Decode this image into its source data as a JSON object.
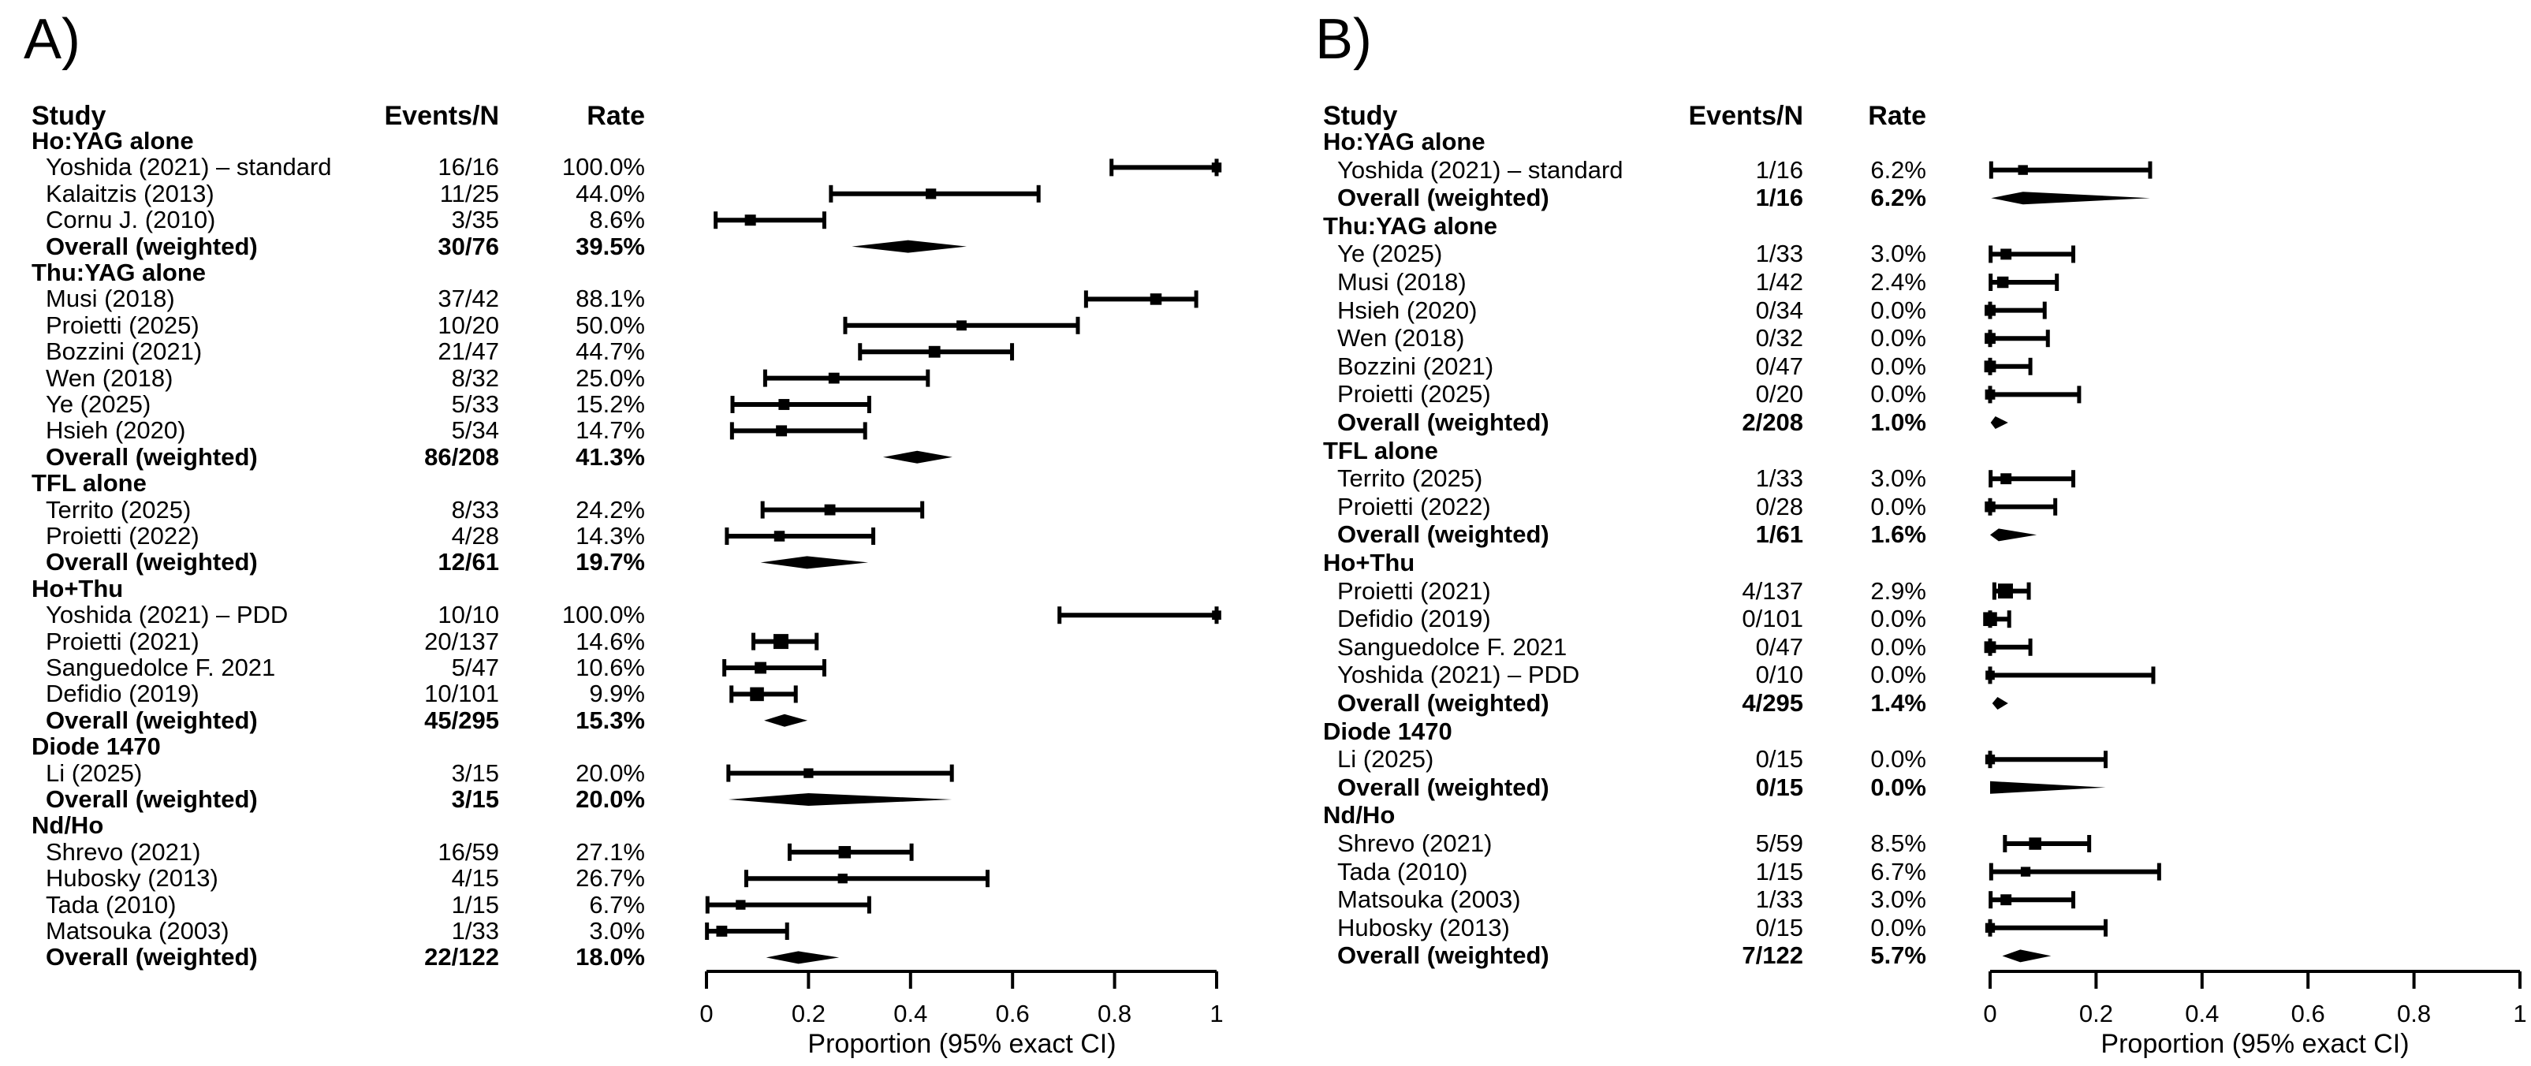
{
  "chart_data": {
    "type": "forest",
    "axis_range": [
      0,
      1
    ],
    "grid": false,
    "colors": {
      "foreground": "#000000",
      "background": "#ffffff"
    },
    "panels": [
      {
        "label": "A)",
        "columns": {
          "study": "Study",
          "events": "Events/N",
          "rate": "Rate"
        },
        "axis": {
          "title": "Proportion (95% exact CI)",
          "min": 0,
          "max": 1,
          "ticks": [
            0,
            0.2,
            0.4,
            0.6,
            0.8,
            1
          ],
          "tick_labels": [
            "0",
            "0.2",
            "0.4",
            "0.6",
            "0.8",
            "1"
          ]
        },
        "rows": [
          {
            "kind": "group",
            "label": "Ho:YAG alone"
          },
          {
            "kind": "study",
            "label": "Yoshida (2021) – standard",
            "events": "16/16",
            "rate": "100.0%",
            "n": 16,
            "est": 1.0,
            "lo": 0.794,
            "hi": 1.0
          },
          {
            "kind": "study",
            "label": "Kalaitzis (2013)",
            "events": "11/25",
            "rate": "44.0%",
            "n": 25,
            "est": 0.44,
            "lo": 0.244,
            "hi": 0.651
          },
          {
            "kind": "study",
            "label": "Cornu J. (2010)",
            "events": "3/35",
            "rate": "8.6%",
            "n": 35,
            "est": 0.086,
            "lo": 0.018,
            "hi": 0.231
          },
          {
            "kind": "overall",
            "label": "Overall (weighted)",
            "events": "30/76",
            "rate": "39.5%",
            "n": 76,
            "est": 0.395,
            "lo": 0.285,
            "hi": 0.51
          },
          {
            "kind": "group",
            "label": "Thu:YAG alone"
          },
          {
            "kind": "study",
            "label": "Musi (2018)",
            "events": "37/42",
            "rate": "88.1%",
            "n": 42,
            "est": 0.881,
            "lo": 0.744,
            "hi": 0.96
          },
          {
            "kind": "study",
            "label": "Proietti (2025)",
            "events": "10/20",
            "rate": "50.0%",
            "n": 20,
            "est": 0.5,
            "lo": 0.272,
            "hi": 0.728
          },
          {
            "kind": "study",
            "label": "Bozzini (2021)",
            "events": "21/47",
            "rate": "44.7%",
            "n": 47,
            "est": 0.447,
            "lo": 0.301,
            "hi": 0.599
          },
          {
            "kind": "study",
            "label": "Wen (2018)",
            "events": "8/32",
            "rate": "25.0%",
            "n": 32,
            "est": 0.25,
            "lo": 0.115,
            "hi": 0.434
          },
          {
            "kind": "study",
            "label": "Ye (2025)",
            "events": "5/33",
            "rate": "15.2%",
            "n": 33,
            "est": 0.152,
            "lo": 0.051,
            "hi": 0.319
          },
          {
            "kind": "study",
            "label": "Hsieh (2020)",
            "events": "5/34",
            "rate": "14.7%",
            "n": 34,
            "est": 0.147,
            "lo": 0.05,
            "hi": 0.311
          },
          {
            "kind": "overall",
            "label": "Overall (weighted)",
            "events": "86/208",
            "rate": "41.3%",
            "n": 208,
            "est": 0.413,
            "lo": 0.346,
            "hi": 0.482
          },
          {
            "kind": "group",
            "label": "TFL alone"
          },
          {
            "kind": "study",
            "label": "Territo (2025)",
            "events": "8/33",
            "rate": "24.2%",
            "n": 33,
            "est": 0.242,
            "lo": 0.11,
            "hi": 0.423
          },
          {
            "kind": "study",
            "label": "Proietti (2022)",
            "events": "4/28",
            "rate": "14.3%",
            "n": 28,
            "est": 0.143,
            "lo": 0.04,
            "hi": 0.327
          },
          {
            "kind": "overall",
            "label": "Overall (weighted)",
            "events": "12/61",
            "rate": "19.7%",
            "n": 61,
            "est": 0.197,
            "lo": 0.106,
            "hi": 0.317
          },
          {
            "kind": "group",
            "label": "Ho+Thu"
          },
          {
            "kind": "study",
            "label": "Yoshida (2021) – PDD",
            "events": "10/10",
            "rate": "100.0%",
            "n": 10,
            "est": 1.0,
            "lo": 0.692,
            "hi": 1.0
          },
          {
            "kind": "study",
            "label": "Proietti (2021)",
            "events": "20/137",
            "rate": "14.6%",
            "n": 137,
            "est": 0.146,
            "lo": 0.092,
            "hi": 0.216
          },
          {
            "kind": "study",
            "label": "Sanguedolce F. 2021",
            "events": "5/47",
            "rate": "10.6%",
            "n": 47,
            "est": 0.106,
            "lo": 0.035,
            "hi": 0.231
          },
          {
            "kind": "study",
            "label": "Defidio (2019)",
            "events": "10/101",
            "rate": "9.9%",
            "n": 101,
            "est": 0.099,
            "lo": 0.049,
            "hi": 0.175
          },
          {
            "kind": "overall",
            "label": "Overall (weighted)",
            "events": "45/295",
            "rate": "15.3%",
            "n": 295,
            "est": 0.153,
            "lo": 0.113,
            "hi": 0.198
          },
          {
            "kind": "group",
            "label": "Diode 1470"
          },
          {
            "kind": "study",
            "label": "Li (2025)",
            "events": "3/15",
            "rate": "20.0%",
            "n": 15,
            "est": 0.2,
            "lo": 0.043,
            "hi": 0.481
          },
          {
            "kind": "overall",
            "label": "Overall (weighted)",
            "events": "3/15",
            "rate": "20.0%",
            "n": 15,
            "est": 0.2,
            "lo": 0.043,
            "hi": 0.481
          },
          {
            "kind": "group",
            "label": "Nd/Ho"
          },
          {
            "kind": "study",
            "label": "Shrevo (2021)",
            "events": "16/59",
            "rate": "27.1%",
            "n": 59,
            "est": 0.271,
            "lo": 0.163,
            "hi": 0.402
          },
          {
            "kind": "study",
            "label": "Hubosky (2013)",
            "events": "4/15",
            "rate": "26.7%",
            "n": 15,
            "est": 0.267,
            "lo": 0.078,
            "hi": 0.551
          },
          {
            "kind": "study",
            "label": "Tada (2010)",
            "events": "1/15",
            "rate": "6.7%",
            "n": 15,
            "est": 0.067,
            "lo": 0.002,
            "hi": 0.319
          },
          {
            "kind": "study",
            "label": "Matsouka (2003)",
            "events": "1/33",
            "rate": "3.0%",
            "n": 33,
            "est": 0.03,
            "lo": 0.001,
            "hi": 0.158
          },
          {
            "kind": "overall",
            "label": "Overall (weighted)",
            "events": "22/122",
            "rate": "18.0%",
            "n": 122,
            "est": 0.18,
            "lo": 0.117,
            "hi": 0.26
          }
        ]
      },
      {
        "label": "B)",
        "columns": {
          "study": "Study",
          "events": "Events/N",
          "rate": "Rate"
        },
        "axis": {
          "title": "Proportion (95% exact CI)",
          "min": 0,
          "max": 1,
          "ticks": [
            0,
            0.2,
            0.4,
            0.6,
            0.8,
            1
          ],
          "tick_labels": [
            "0",
            "0.2",
            "0.4",
            "0.6",
            "0.8",
            "1"
          ]
        },
        "rows": [
          {
            "kind": "group",
            "label": "Ho:YAG alone"
          },
          {
            "kind": "study",
            "label": "Yoshida (2021) – standard",
            "events": "1/16",
            "rate": "6.2%",
            "n": 16,
            "est": 0.062,
            "lo": 0.002,
            "hi": 0.302
          },
          {
            "kind": "overall",
            "label": "Overall (weighted)",
            "events": "1/16",
            "rate": "6.2%",
            "n": 16,
            "est": 0.062,
            "lo": 0.002,
            "hi": 0.302
          },
          {
            "kind": "group",
            "label": "Thu:YAG alone"
          },
          {
            "kind": "study",
            "label": "Ye (2025)",
            "events": "1/33",
            "rate": "3.0%",
            "n": 33,
            "est": 0.03,
            "lo": 0.001,
            "hi": 0.157
          },
          {
            "kind": "study",
            "label": "Musi (2018)",
            "events": "1/42",
            "rate": "2.4%",
            "n": 42,
            "est": 0.024,
            "lo": 0.001,
            "hi": 0.126
          },
          {
            "kind": "study",
            "label": "Hsieh (2020)",
            "events": "0/34",
            "rate": "0.0%",
            "n": 34,
            "est": 0.0,
            "lo": 0.0,
            "hi": 0.103
          },
          {
            "kind": "study",
            "label": "Wen (2018)",
            "events": "0/32",
            "rate": "0.0%",
            "n": 32,
            "est": 0.0,
            "lo": 0.0,
            "hi": 0.109
          },
          {
            "kind": "study",
            "label": "Bozzini (2021)",
            "events": "0/47",
            "rate": "0.0%",
            "n": 47,
            "est": 0.0,
            "lo": 0.0,
            "hi": 0.076
          },
          {
            "kind": "study",
            "label": "Proietti (2025)",
            "events": "0/20",
            "rate": "0.0%",
            "n": 20,
            "est": 0.0,
            "lo": 0.0,
            "hi": 0.168
          },
          {
            "kind": "overall",
            "label": "Overall (weighted)",
            "events": "2/208",
            "rate": "1.0%",
            "n": 208,
            "est": 0.01,
            "lo": 0.001,
            "hi": 0.034
          },
          {
            "kind": "group",
            "label": "TFL alone"
          },
          {
            "kind": "study",
            "label": "Territo (2025)",
            "events": "1/33",
            "rate": "3.0%",
            "n": 33,
            "est": 0.03,
            "lo": 0.001,
            "hi": 0.157
          },
          {
            "kind": "study",
            "label": "Proietti (2022)",
            "events": "0/28",
            "rate": "0.0%",
            "n": 28,
            "est": 0.0,
            "lo": 0.0,
            "hi": 0.123
          },
          {
            "kind": "overall",
            "label": "Overall (weighted)",
            "events": "1/61",
            "rate": "1.6%",
            "n": 61,
            "est": 0.016,
            "lo": 0.0,
            "hi": 0.088
          },
          {
            "kind": "group",
            "label": "Ho+Thu"
          },
          {
            "kind": "study",
            "label": "Proietti (2021)",
            "events": "4/137",
            "rate": "2.9%",
            "n": 137,
            "est": 0.029,
            "lo": 0.008,
            "hi": 0.073
          },
          {
            "kind": "study",
            "label": "Defidio (2019)",
            "events": "0/101",
            "rate": "0.0%",
            "n": 101,
            "est": 0.0,
            "lo": 0.0,
            "hi": 0.036
          },
          {
            "kind": "study",
            "label": "Sanguedolce F. 2021",
            "events": "0/47",
            "rate": "0.0%",
            "n": 47,
            "est": 0.0,
            "lo": 0.0,
            "hi": 0.076
          },
          {
            "kind": "study",
            "label": "Yoshida (2021) – PDD",
            "events": "0/10",
            "rate": "0.0%",
            "n": 10,
            "est": 0.0,
            "lo": 0.0,
            "hi": 0.308
          },
          {
            "kind": "overall",
            "label": "Overall (weighted)",
            "events": "4/295",
            "rate": "1.4%",
            "n": 295,
            "est": 0.014,
            "lo": 0.004,
            "hi": 0.034
          },
          {
            "kind": "group",
            "label": "Diode 1470"
          },
          {
            "kind": "study",
            "label": "Li (2025)",
            "events": "0/15",
            "rate": "0.0%",
            "n": 15,
            "est": 0.0,
            "lo": 0.0,
            "hi": 0.218
          },
          {
            "kind": "overall",
            "label": "Overall (weighted)",
            "events": "0/15",
            "rate": "0.0%",
            "n": 15,
            "est": 0.0,
            "lo": 0.0,
            "hi": 0.218
          },
          {
            "kind": "group",
            "label": "Nd/Ho"
          },
          {
            "kind": "study",
            "label": "Shrevo (2021)",
            "events": "5/59",
            "rate": "8.5%",
            "n": 59,
            "est": 0.085,
            "lo": 0.028,
            "hi": 0.187
          },
          {
            "kind": "study",
            "label": "Tada (2010)",
            "events": "1/15",
            "rate": "6.7%",
            "n": 15,
            "est": 0.067,
            "lo": 0.002,
            "hi": 0.319
          },
          {
            "kind": "study",
            "label": "Matsouka (2003)",
            "events": "1/33",
            "rate": "3.0%",
            "n": 33,
            "est": 0.03,
            "lo": 0.001,
            "hi": 0.157
          },
          {
            "kind": "study",
            "label": "Hubosky (2013)",
            "events": "0/15",
            "rate": "0.0%",
            "n": 15,
            "est": 0.0,
            "lo": 0.0,
            "hi": 0.218
          },
          {
            "kind": "overall",
            "label": "Overall (weighted)",
            "events": "7/122",
            "rate": "5.7%",
            "n": 122,
            "est": 0.057,
            "lo": 0.023,
            "hi": 0.115
          }
        ]
      }
    ]
  }
}
